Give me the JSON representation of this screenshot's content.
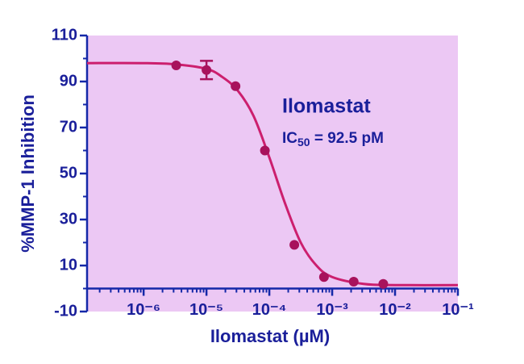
{
  "chart_data": {
    "type": "dose-response",
    "x_label": "Ilomastat (µM)",
    "y_label": "%MMP-1 Inhibition",
    "annotations": {
      "name": "Ilomastat",
      "ic_label": "IC",
      "ic_subscript": "50",
      "ic_value": " = 92.5 pM"
    },
    "x_log_scale": true,
    "xlim": [
      1.26e-07,
      0.1
    ],
    "ylim": [
      -10,
      110
    ],
    "xticks": [
      {
        "value": 1e-06,
        "label": "10⁻⁶"
      },
      {
        "value": 1e-05,
        "label": "10⁻⁵"
      },
      {
        "value": 0.0001,
        "label": "10⁻⁴"
      },
      {
        "value": 0.001,
        "label": "10⁻³"
      },
      {
        "value": 0.01,
        "label": "10⁻²"
      },
      {
        "value": 0.1,
        "label": "10⁻¹"
      }
    ],
    "yticks": [
      -10,
      10,
      30,
      50,
      70,
      90,
      110
    ],
    "background": "#ecc8f4",
    "axis_color": "#1428a8",
    "series": [
      {
        "kind": "points",
        "color": "#a8125c",
        "x": [
          3.3e-06,
          1e-05,
          2.9e-05,
          8.5e-05,
          0.00025,
          0.00074,
          0.0022,
          0.0065
        ],
        "values": [
          97,
          95,
          88,
          60,
          19,
          5,
          3,
          2
        ],
        "errors": [
          null,
          4,
          null,
          null,
          null,
          null,
          null,
          null
        ]
      },
      {
        "kind": "curve",
        "color": "#cc1f6e",
        "x": [
          1.26e-07,
          1e-06,
          3.16e-06,
          1e-05,
          1.78e-05,
          3.16e-05,
          5.62e-05,
          0.0001,
          0.000178,
          0.000316,
          0.000562,
          0.001,
          0.00316,
          0.01,
          0.1
        ],
        "values": [
          98,
          98,
          97.5,
          95.5,
          92,
          86,
          75,
          57,
          37,
          20,
          10,
          5,
          2,
          1.5,
          1.5
        ]
      }
    ]
  }
}
